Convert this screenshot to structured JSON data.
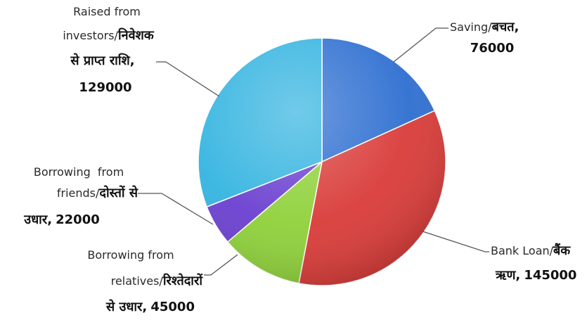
{
  "chart_data": {
    "type": "pie",
    "title": "",
    "slices": [
      {
        "label_part1": "Saving/",
        "label_part2": "बचत,",
        "value": 76000,
        "value_text": "76000",
        "color": "#2e6fd1"
      },
      {
        "label_part1": "Bank Loan/",
        "label_part2": "बैंक",
        "label_part3": "ऋण,",
        "value": 145000,
        "value_text": "145000",
        "color": "#d93b38"
      },
      {
        "label_part1": "Borrowing from",
        "label_part2": "relatives/",
        "label_part3": "रिश्तेदारों",
        "label_part4": "से उधार,",
        "value": 45000,
        "value_text": "45000",
        "color": "#8fd13a"
      },
      {
        "label_part1": "Borrowing  from",
        "label_part2": "friends/",
        "label_part3": "दोस्तों से",
        "label_part4": "उधार,",
        "value": 22000,
        "value_text": "22000",
        "color": "#6a3fd0"
      },
      {
        "label_part1": "Raised from",
        "label_part2": "investors/",
        "label_part3": "निवेशक",
        "label_part4": "से प्राप्त राशि,",
        "value": 129000,
        "value_text": "129000",
        "color": "#34b4e0"
      }
    ]
  }
}
